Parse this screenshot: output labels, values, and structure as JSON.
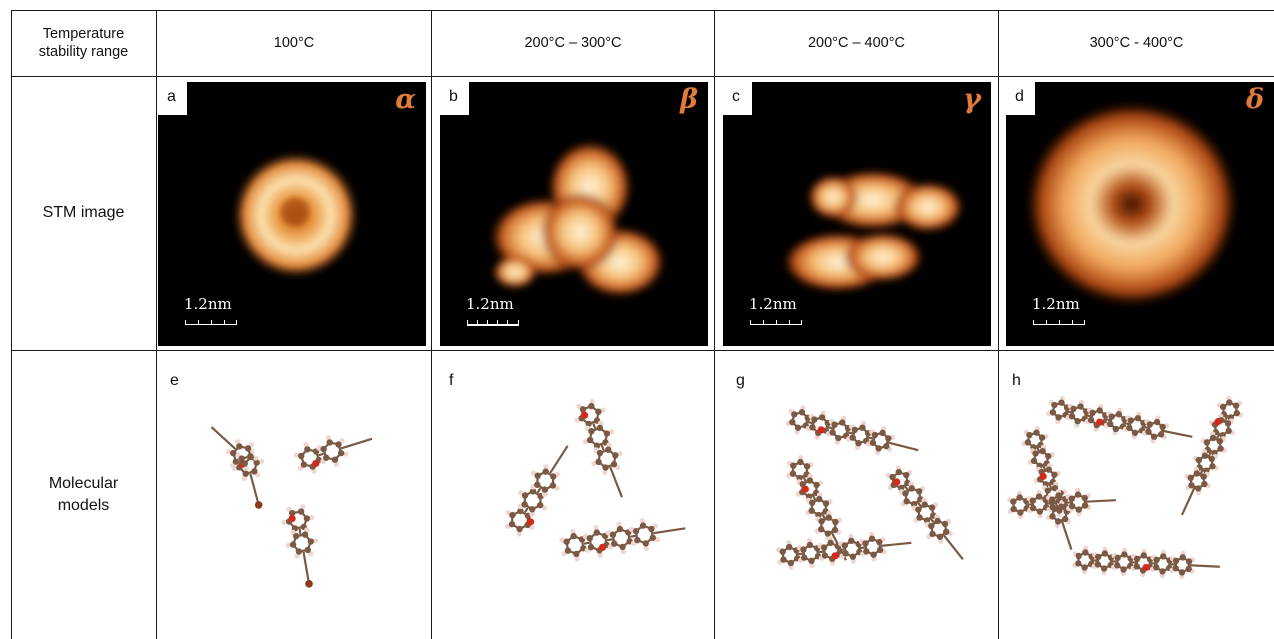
{
  "rows": {
    "temperature_header": [
      "Temperature",
      "stability range"
    ],
    "stm_header": "STM image",
    "models_header": [
      "Molecular",
      "models"
    ]
  },
  "columns": [
    {
      "temperature": "100°C",
      "stm_label": "a",
      "phase": "α",
      "scale": "1.2nm",
      "model_label": "e"
    },
    {
      "temperature": "200°C – 300°C",
      "stm_label": "b",
      "phase": "β",
      "scale": "1.2nm",
      "model_label": "f"
    },
    {
      "temperature": "200°C – 400°C",
      "stm_label": "c",
      "phase": "γ",
      "scale": "1.2nm",
      "model_label": "g"
    },
    {
      "temperature": "300°C - 400°C",
      "stm_label": "d",
      "phase": "δ",
      "scale": "1.2nm",
      "model_label": "h"
    }
  ],
  "colors": {
    "phase_label": "#e07b3a",
    "carbon": "#7a5a44",
    "hydrogen": "#f0d6d0",
    "oxygen": "#d42a1e",
    "bromine": "#8a3a1a"
  }
}
